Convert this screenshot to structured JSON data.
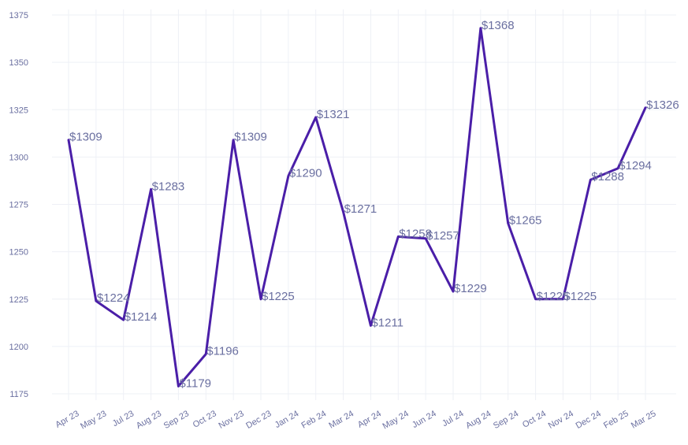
{
  "chart_data": {
    "type": "line",
    "title": "",
    "xlabel": "",
    "ylabel": "",
    "categories": [
      "Apr 23",
      "May 23",
      "Jul 23",
      "Aug 23",
      "Sep 23",
      "Oct 23",
      "Nov 23",
      "Dec 23",
      "Jan 24",
      "Feb 24",
      "Mar 24",
      "Apr 24",
      "May 24",
      "Jun 24",
      "Jul 24",
      "Aug 24",
      "Sep 24",
      "Oct 24",
      "Nov 24",
      "Dec 24",
      "Feb 25",
      "Mar 25"
    ],
    "series": [
      {
        "values": [
          1309,
          1224,
          1214,
          1283,
          1179,
          1196,
          1309,
          1225,
          1290,
          1321,
          1271,
          1211,
          1258,
          1257,
          1229,
          1368,
          1265,
          1225,
          1225,
          1288,
          1294,
          1326
        ],
        "data_labels": [
          "$1309",
          "$1224",
          "$1214",
          "$1283",
          "$1179",
          "$1196",
          "$1309",
          "$1225",
          "$1290",
          "$1321",
          "$1271",
          "$1211",
          "$1258",
          "$1257",
          "$1229",
          "$1368",
          "$1265",
          "$1225",
          "$1225",
          "$1288",
          "$1294",
          "$1326"
        ]
      }
    ],
    "ylim": [
      1175,
      1375
    ],
    "yticks": [
      "1175",
      "1200",
      "1225",
      "1250",
      "1275",
      "1300",
      "1325",
      "1350",
      "1375"
    ],
    "grid": true,
    "colors": {
      "line": "#4a1ea8",
      "labels": "#6a6fa0",
      "grid": "#eef0f6"
    }
  }
}
